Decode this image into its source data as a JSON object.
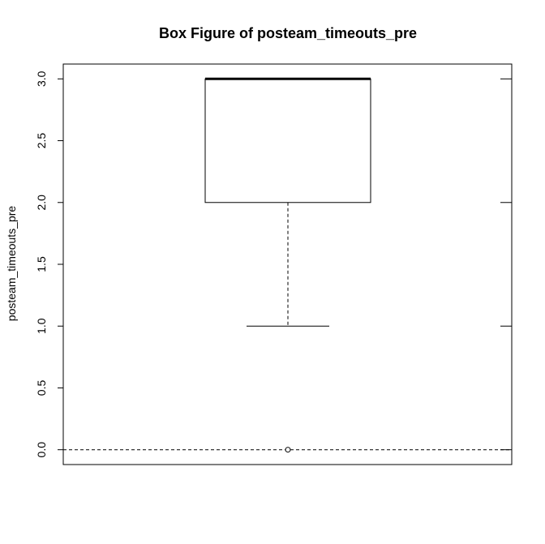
{
  "chart_data": {
    "type": "boxplot",
    "title": "Box Figure of posteam_timeouts_pre",
    "xlabel": "",
    "ylabel": "posteam_timeouts_pre",
    "ylim": [
      -0.12,
      3.12
    ],
    "yticks": [
      0.0,
      0.5,
      1.0,
      1.5,
      2.0,
      2.5,
      3.0
    ],
    "ytick_labels": [
      "0.0",
      "0.5",
      "1.0",
      "1.5",
      "2.0",
      "2.5",
      "3.0"
    ],
    "box": {
      "whisker_low": 1.0,
      "q1": 2.0,
      "median": 3.0,
      "q3": 3.0,
      "whisker_high": 3.0
    },
    "outliers": [
      0.0
    ],
    "reference_lines": [
      {
        "y": 0.0,
        "style": "dashed"
      }
    ],
    "right_ticks": [
      0.0,
      1.0,
      2.0,
      3.0
    ],
    "grid": false,
    "colors": {
      "stroke": "#000000",
      "background": "#ffffff"
    }
  }
}
